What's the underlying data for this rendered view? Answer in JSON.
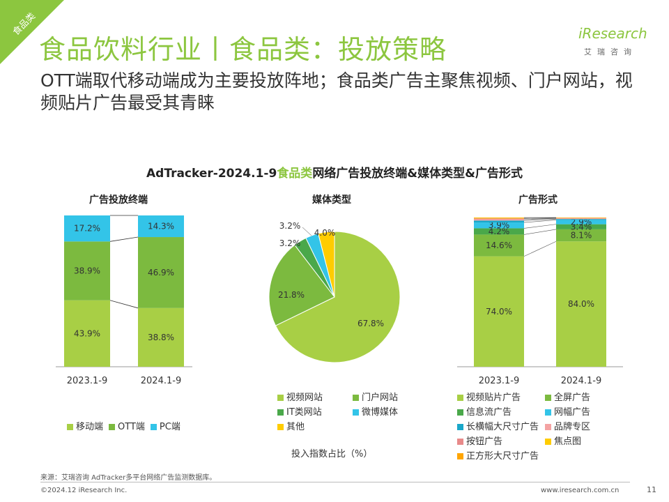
{
  "corner_tag": "食品类",
  "title": "食品饮料行业丨食品类：投放策略",
  "subtitle": "OTT端取代移动端成为主要投放阵地；食品类广告主聚焦视频、门户网站，视频贴片广告最受其青睐",
  "logo": {
    "main": "iResearch",
    "sub": "艾瑞咨询"
  },
  "chart_title_prefix": "AdTracker-2024.1-9",
  "chart_title_highlight": "食品类",
  "chart_title_suffix": "网络广告投放终端&媒体类型&广告形式",
  "unit_note": "投入指数占比（%）",
  "footer": {
    "source": "来源：艾瑞咨询 AdTracker多平台网络广告监测数据库。",
    "copyright": "©2024.12 iResearch Inc.",
    "url": "www.iresearch.com.cn",
    "page": "11"
  },
  "colors": {
    "accent": "#8cc63f",
    "mobile": "#a8cf45",
    "ott": "#7cba3f",
    "pc": "#33c4e8",
    "video": "#a8cf45",
    "portal": "#7cba3f",
    "it": "#4aa84a",
    "weibo": "#33c4e8",
    "other": "#ffcc00",
    "video_patch": "#a8cf45",
    "fullscreen": "#7cba3f",
    "feed": "#4aa84a",
    "banner": "#33c4e8",
    "long_banner": "#1aa7c9",
    "brand_zone": "#f4a3a3",
    "button": "#e88a8a",
    "focus": "#ffcc00",
    "square": "#ffa500"
  },
  "chart_data": [
    {
      "type": "bar",
      "title": "广告投放终端",
      "categories": [
        "2023.1-9",
        "2024.1-9"
      ],
      "stacked": true,
      "series": [
        {
          "name": "移动端",
          "values": [
            43.9,
            38.8
          ]
        },
        {
          "name": "OTT端",
          "values": [
            38.9,
            46.9
          ]
        },
        {
          "name": "PC端",
          "values": [
            17.2,
            14.3
          ]
        }
      ],
      "labels": [
        [
          "43.9%",
          "38.8%"
        ],
        [
          "38.9%",
          "46.9%"
        ],
        [
          "17.2%",
          "14.3%"
        ]
      ],
      "ylim": [
        0,
        100
      ]
    },
    {
      "type": "pie",
      "title": "媒体类型",
      "slices": [
        {
          "name": "视频网站",
          "value": 67.8,
          "label": "67.8%"
        },
        {
          "name": "门户网站",
          "value": 21.8,
          "label": "21.8%"
        },
        {
          "name": "IT类网站",
          "value": 3.2,
          "label": "3.2%"
        },
        {
          "name": "微博媒体",
          "value": 3.2,
          "label": "3.2%"
        },
        {
          "name": "其他",
          "value": 4.0,
          "label": "4.0%"
        }
      ]
    },
    {
      "type": "bar",
      "title": "广告形式",
      "categories": [
        "2023.1-9",
        "2024.1-9"
      ],
      "stacked": true,
      "series": [
        {
          "name": "视频贴片广告",
          "values": [
            74.0,
            84.0
          ],
          "labels": [
            "74.0%",
            "84.0%"
          ]
        },
        {
          "name": "全屏广告",
          "values": [
            14.6,
            8.1
          ],
          "labels": [
            "14.6%",
            "8.1%"
          ]
        },
        {
          "name": "信息流广告",
          "values": [
            4.2,
            3.4
          ],
          "labels": [
            "4.2%",
            "3.4%"
          ]
        },
        {
          "name": "网幅广告",
          "values": [
            3.9,
            2.9
          ],
          "labels": [
            "3.9%",
            "2.9%"
          ]
        },
        {
          "name": "长横幅大尺寸广告",
          "values": [
            1.3,
            0.6
          ],
          "labels": [
            "",
            ""
          ]
        },
        {
          "name": "品牌专区",
          "values": [
            0.8,
            0.4
          ],
          "labels": [
            "",
            ""
          ]
        },
        {
          "name": "按钮广告",
          "values": [
            0.6,
            0.3
          ],
          "labels": [
            "",
            ""
          ]
        },
        {
          "name": "焦点图",
          "values": [
            0.4,
            0.2
          ],
          "labels": [
            "",
            ""
          ]
        },
        {
          "name": "正方形大尺寸广告",
          "values": [
            0.2,
            0.1
          ],
          "labels": [
            "",
            ""
          ]
        }
      ],
      "ylim": [
        0,
        100
      ]
    }
  ],
  "legends": {
    "terminal": [
      "移动端",
      "OTT端",
      "PC端"
    ],
    "media": [
      "视频网站",
      "门户网站",
      "IT类网站",
      "微博媒体",
      "其他"
    ],
    "format": [
      "视频贴片广告",
      "全屏广告",
      "信息流广告",
      "网幅广告",
      "长横幅大尺寸广告",
      "品牌专区",
      "按钮广告",
      "焦点图",
      "正方形大尺寸广告"
    ]
  }
}
